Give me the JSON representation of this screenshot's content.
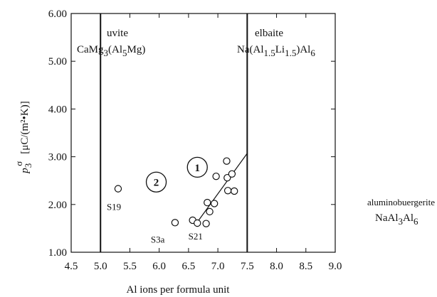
{
  "chart_data": {
    "type": "scatter",
    "xlabel": "Al ions per formula unit",
    "ylabel": "p3σ [μC/(m²•K)]",
    "ylabel_parts": {
      "p": "p",
      "sub": "3",
      "sup": "σ",
      "unit": "[μC/(m²•K)]"
    },
    "xlim": [
      4.5,
      9.0
    ],
    "ylim": [
      1.0,
      6.0
    ],
    "x_ticks": [
      "4.5",
      "5.0",
      "5.5",
      "6.0",
      "6.5",
      "7.0",
      "7.5",
      "8.0",
      "8.5",
      "9.0"
    ],
    "y_ticks": [
      "1.00",
      "2.00",
      "3.00",
      "4.00",
      "5.00",
      "6.00"
    ],
    "grid": false,
    "points": [
      {
        "x": 5.3,
        "y": 2.33
      },
      {
        "x": 6.27,
        "y": 1.62
      },
      {
        "x": 6.57,
        "y": 1.67
      },
      {
        "x": 6.65,
        "y": 1.61
      },
      {
        "x": 6.8,
        "y": 1.6
      },
      {
        "x": 6.82,
        "y": 2.04
      },
      {
        "x": 6.86,
        "y": 1.85
      },
      {
        "x": 6.94,
        "y": 2.02
      },
      {
        "x": 6.97,
        "y": 2.59
      },
      {
        "x": 7.15,
        "y": 2.91
      },
      {
        "x": 7.16,
        "y": 2.56
      },
      {
        "x": 7.17,
        "y": 2.29
      },
      {
        "x": 7.24,
        "y": 2.64
      },
      {
        "x": 7.28,
        "y": 2.28
      }
    ],
    "fit_line": {
      "x": [
        6.62,
        7.5
      ],
      "y": [
        1.58,
        3.07
      ]
    },
    "vertical_lines": [
      {
        "x": 5.0,
        "name": "uvite",
        "formula": {
          "a": "CaMg",
          "b": "3",
          "c": "(Al",
          "d": "5",
          "e": "Mg)"
        }
      },
      {
        "x": 7.5,
        "name": "elbaite",
        "formula": {
          "a": "Na(Al",
          "b": "1.5",
          "c": "Li",
          "d": "1.5",
          "e": ")Al",
          "f": "6"
        }
      }
    ],
    "outside_label": {
      "name": "aluminobuergerite",
      "formula": {
        "a": "NaAl",
        "b": "3",
        "c": "Al",
        "d": "6"
      }
    },
    "point_labels": [
      {
        "text": "S19",
        "x": 5.3,
        "y": 2.33
      },
      {
        "text": "S3a",
        "x": 6.27,
        "y": 1.62
      },
      {
        "text": "S21",
        "x": 6.57,
        "y": 1.67
      }
    ],
    "group_markers": [
      {
        "text": "1",
        "x": 6.65,
        "y": 2.78
      },
      {
        "text": "2",
        "x": 5.95,
        "y": 2.47
      }
    ]
  }
}
